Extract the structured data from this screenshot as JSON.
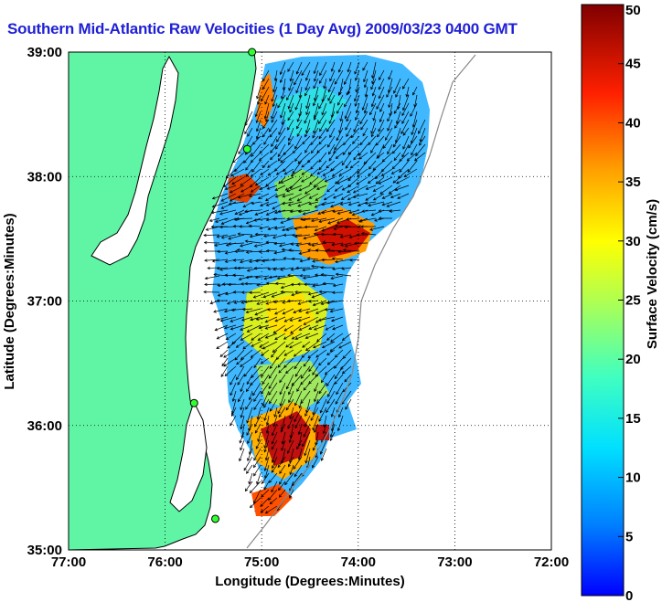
{
  "title": "Southern Mid-Atlantic Raw Velocities (1 Day Avg) 2009/03/23 0400 GMT",
  "map": {
    "xlabel": "Longitude (Degrees:Minutes)",
    "ylabel": "Latitude (Degrees:Minutes)",
    "x_ticks": [
      "77:00",
      "76:00",
      "75:00",
      "74:00",
      "73:00",
      "72:00"
    ],
    "y_ticks": [
      "39:00",
      "38:00",
      "37:00",
      "36:00",
      "35:00"
    ],
    "lon_range": [
      -77,
      -72
    ],
    "lat_range": [
      35,
      39
    ],
    "grid": "dotted",
    "land_color": "#5ff5a5",
    "coast_color": "#000000"
  },
  "colorbar": {
    "label": "Surface Velocity (cm/s)",
    "min": 0,
    "max": 50,
    "ticks": [
      "50",
      "45",
      "40",
      "35",
      "30",
      "25",
      "20",
      "15",
      "10",
      "5",
      "0"
    ]
  },
  "stations": [
    {
      "lon": -75.1,
      "lat": 39.0
    },
    {
      "lon": -75.15,
      "lat": 38.22
    },
    {
      "lon": -75.7,
      "lat": 36.18
    },
    {
      "lon": -75.48,
      "lat": 35.25
    }
  ]
}
